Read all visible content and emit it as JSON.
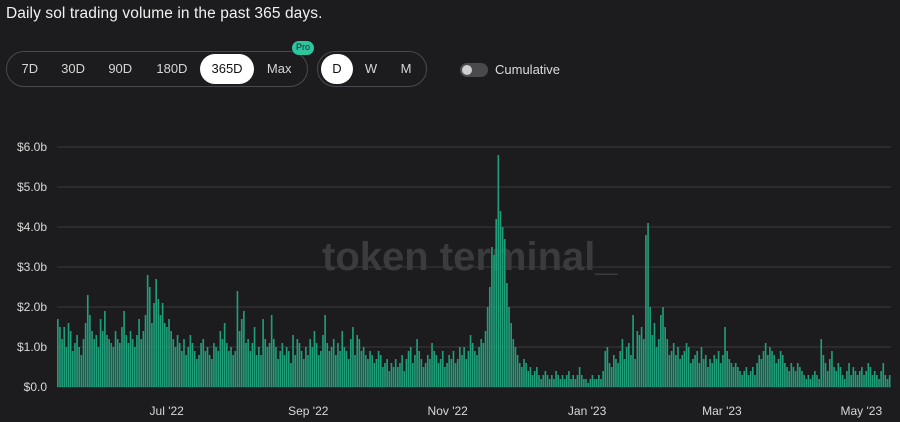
{
  "header": {
    "title": "Daily sol trading volume in the past 365 days."
  },
  "controls": {
    "ranges": [
      "7D",
      "30D",
      "90D",
      "180D",
      "365D",
      "Max"
    ],
    "active_range": "365D",
    "pro_badge": "Pro",
    "granularity": [
      "D",
      "W",
      "M"
    ],
    "active_granularity": "D",
    "cumulative_label": "Cumulative",
    "cumulative_on": false
  },
  "watermark": "token terminal_",
  "colors": {
    "bar": "#1f9e7a",
    "background": "#1c1c1e",
    "grid": "#3a3a3d",
    "accent": "#2ec4a0"
  },
  "chart_data": {
    "type": "bar",
    "title": "Daily sol trading volume in the past 365 days.",
    "x_start": "2022-05-14",
    "x_end": "2023-05-14",
    "xtick_labels": [
      "Jul '22",
      "Sep '22",
      "Nov '22",
      "Jan '23",
      "Mar '23",
      "May '23"
    ],
    "ytick_labels": [
      "$0.0",
      "$1.0b",
      "$2.0b",
      "$3.0b",
      "$4.0b",
      "$5.0b",
      "$6.0b"
    ],
    "ylim": [
      0,
      6.0
    ],
    "y_unit": "billions USD",
    "grid": true,
    "series": [
      {
        "values": [
          1.7,
          1.5,
          1.2,
          1.5,
          1.0,
          1.6,
          1.4,
          0.9,
          1.1,
          1.3,
          1.0,
          0.8,
          1.2,
          1.6,
          2.3,
          1.8,
          1.4,
          1.2,
          1.3,
          1.0,
          1.7,
          1.4,
          1.9,
          1.3,
          1.2,
          1.1,
          1.0,
          1.4,
          1.2,
          1.1,
          1.5,
          1.9,
          1.3,
          1.1,
          1.4,
          1.2,
          1.0,
          1.3,
          1.7,
          1.2,
          1.4,
          1.8,
          2.8,
          2.5,
          1.6,
          2.1,
          2.7,
          2.2,
          1.8,
          2.1,
          1.6,
          1.5,
          1.7,
          1.4,
          1.2,
          1.0,
          1.3,
          1.1,
          0.9,
          1.2,
          0.8,
          1.0,
          1.3,
          1.1,
          0.9,
          0.7,
          0.8,
          1.1,
          1.2,
          0.9,
          1.0,
          0.8,
          0.7,
          1.1,
          1.0,
          0.9,
          1.4,
          1.2,
          1.6,
          1.1,
          0.9,
          1.0,
          0.8,
          0.9,
          2.4,
          1.4,
          1.7,
          1.9,
          1.1,
          1.2,
          0.9,
          1.1,
          1.5,
          0.8,
          1.0,
          0.8,
          1.7,
          1.2,
          1.0,
          1.1,
          1.8,
          1.2,
          1.0,
          0.7,
          0.9,
          1.1,
          0.8,
          1.0,
          0.9,
          0.6,
          1.3,
          0.8,
          1.2,
          1.1,
          0.9,
          0.7,
          1.0,
          0.8,
          1.2,
          1.0,
          1.4,
          1.1,
          0.8,
          0.9,
          1.3,
          1.8,
          1.1,
          0.9,
          1.0,
          1.2,
          0.8,
          1.1,
          0.9,
          1.4,
          1.0,
          0.9,
          0.7,
          1.2,
          1.5,
          0.8,
          1.3,
          1.2,
          0.9,
          1.0,
          0.8,
          0.7,
          0.9,
          0.8,
          0.6,
          0.7,
          0.9,
          0.8,
          0.5,
          0.6,
          0.7,
          0.4,
          0.6,
          0.5,
          0.7,
          0.5,
          0.6,
          0.8,
          0.4,
          0.7,
          0.9,
          1.0,
          0.6,
          0.8,
          1.2,
          0.9,
          0.7,
          0.5,
          0.6,
          0.8,
          0.7,
          1.1,
          0.9,
          0.8,
          0.6,
          0.7,
          0.9,
          0.5,
          0.6,
          0.8,
          0.7,
          0.9,
          0.6,
          0.7,
          1.0,
          0.8,
          1.0,
          0.7,
          0.9,
          1.3,
          1.1,
          0.9,
          0.8,
          1.0,
          1.2,
          1.1,
          1.4,
          2.0,
          2.5,
          3.5,
          3.3,
          4.2,
          5.8,
          4.4,
          4.0,
          3.7,
          2.6,
          2.0,
          1.6,
          1.2,
          1.0,
          0.8,
          0.6,
          0.5,
          0.7,
          0.6,
          0.4,
          0.5,
          0.3,
          0.4,
          0.5,
          0.3,
          0.2,
          0.3,
          0.4,
          0.3,
          0.2,
          0.3,
          0.2,
          0.4,
          0.3,
          0.2,
          0.3,
          0.2,
          0.3,
          0.4,
          0.2,
          0.3,
          0.2,
          0.3,
          0.5,
          0.3,
          0.2,
          0.2,
          0.1,
          0.2,
          0.3,
          0.2,
          0.2,
          0.3,
          0.2,
          0.4,
          0.9,
          1.0,
          0.6,
          0.5,
          0.8,
          0.7,
          0.6,
          0.9,
          1.2,
          0.7,
          1.0,
          1.1,
          0.8,
          1.8,
          0.7,
          1.4,
          1.3,
          1.5,
          1.2,
          3.8,
          4.1,
          2.0,
          1.3,
          1.6,
          1.0,
          1.2,
          1.8,
          2.0,
          1.5,
          1.2,
          0.8,
          0.9,
          1.1,
          0.8,
          1.0,
          0.7,
          0.8,
          0.9,
          1.1,
          1.0,
          0.6,
          0.7,
          0.8,
          0.9,
          0.6,
          1.0,
          0.7,
          0.8,
          0.5,
          0.7,
          0.6,
          0.8,
          0.7,
          0.9,
          0.6,
          0.8,
          1.5,
          0.9,
          0.7,
          0.6,
          0.5,
          0.6,
          0.5,
          0.4,
          0.3,
          0.4,
          0.5,
          0.3,
          0.4,
          0.5,
          0.3,
          0.6,
          0.8,
          0.7,
          0.9,
          1.1,
          0.8,
          1.0,
          0.9,
          0.8,
          0.6,
          0.7,
          0.9,
          0.8,
          0.6,
          0.5,
          0.4,
          0.6,
          0.5,
          0.4,
          0.6,
          0.5,
          0.4,
          0.3,
          0.2,
          0.3,
          0.2,
          0.3,
          0.4,
          0.3,
          0.2,
          1.2,
          0.8,
          0.6,
          0.4,
          0.7,
          0.9,
          0.5,
          0.4,
          0.6,
          0.5,
          0.3,
          0.2,
          0.4,
          0.6,
          0.3,
          0.5,
          0.4,
          0.3,
          0.4,
          0.5,
          0.3,
          0.4,
          0.6,
          0.5,
          0.3,
          0.4,
          0.3,
          0.2,
          0.4,
          0.6,
          0.3,
          0.2,
          0.3
        ]
      }
    ]
  }
}
